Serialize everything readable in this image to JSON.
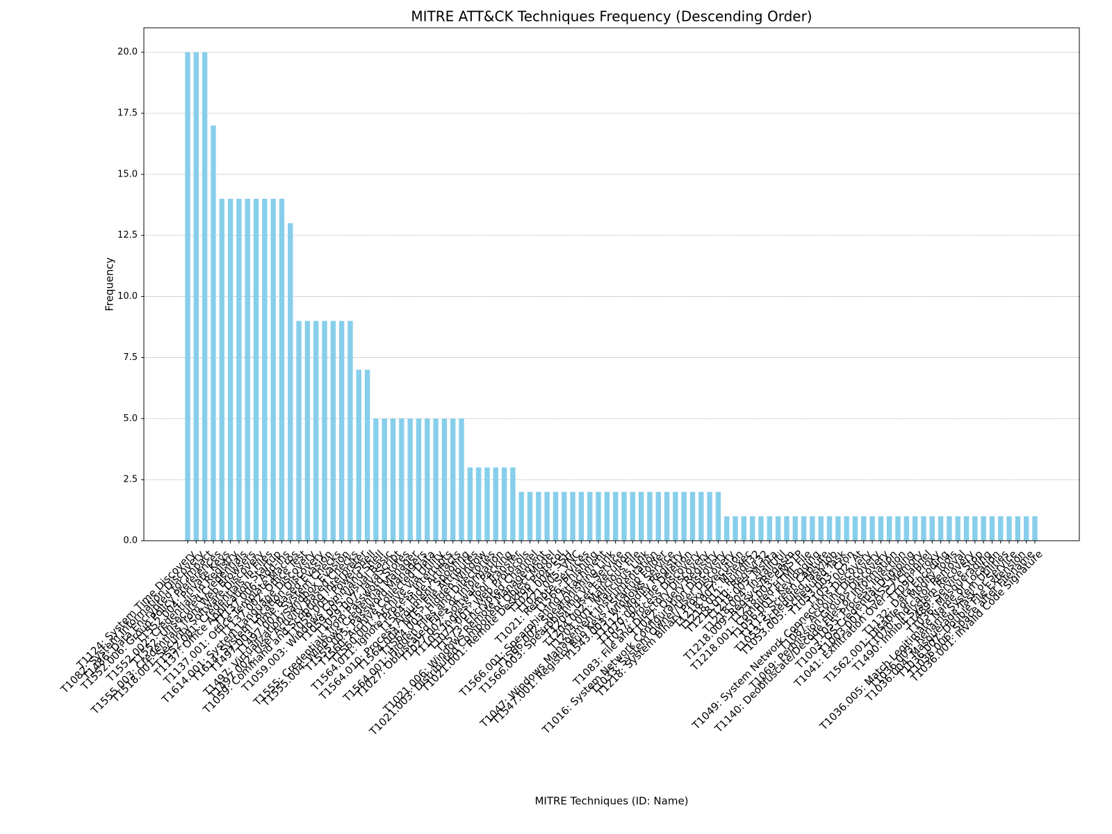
{
  "chart_data": {
    "type": "bar",
    "title": "MITRE ATT&CK Techniques Frequency (Descending Order)",
    "x_label": "MITRE Techniques (ID: Name)",
    "y_label": "Frequency",
    "color": "#87ceeb",
    "grid": true,
    "ylim": [
      0,
      21
    ],
    "yticks": [
      {
        "value": 0,
        "label": "0.0"
      },
      {
        "value": 2.5,
        "label": "2.5"
      },
      {
        "value": 5,
        "label": "5.0"
      },
      {
        "value": 7.5,
        "label": "7.5"
      },
      {
        "value": 10,
        "label": "10.0"
      },
      {
        "value": 12.5,
        "label": "12.5"
      },
      {
        "value": 15,
        "label": "15.0"
      },
      {
        "value": 17.5,
        "label": "17.5"
      },
      {
        "value": 20,
        "label": "20.0"
      }
    ],
    "categories": [
      "T1124: System Time Discovery",
      "T1082: System Information Discovery",
      "T1486: Data Encrypted for Impact",
      "T1552.006: Group Policy Preferences",
      "T1552.004: Private Keys",
      "T1552.002: Credentials in Registry",
      "T1552: Unsecured Credentials",
      "T1555.003: Credentials from Web Browsers",
      "T1518.001: Security Software Discovery",
      "T1552.001: Credentials In Files",
      "T1137: Office Application Startup",
      "T1137.006: Add-ins",
      "T1137.001: Office Template Macros",
      "T1137.002: Office Test",
      "T1614.001: System Language Discovery",
      "T1614: System Location Discovery",
      "T1497.003: Time Based Evasion",
      "T1497.001: System Checks",
      "T1497: Virtualization/Sandbox Evasion",
      "T1497.002: User Activity Based Checks",
      "T1059: Command and Scripting Interpreter",
      "T1059.001: PowerShell",
      "T1059.003: Windows Command Shell",
      "T1059.005: Visual Basic",
      "T1059.007: JavaScript",
      "T1555: Credentials from Password Stores",
      "T1555.004: Windows Credential Manager",
      "T1555.005: Password Managers",
      "T1560: Archive Collected Data",
      "T1560.001: Archive via Utility",
      "T1564.011: Ignore Process Interrupts",
      "T1564: Hide Artifacts",
      "T1564.010: Process Argument Spoofing",
      "T1564.004: NTFS File Attributes",
      "T1564.003: Hidden Window",
      "T1564.001: Hidden Files and Directories",
      "T1027: Obfuscated Files or Information",
      "T1027.002: Software Packing",
      "T1105: Ingress Tool Transfer",
      "T1071.001: Web Protocols",
      "T1573: Encrypted Channel",
      "T1021.006: Windows Remote Management",
      "T1021.003: Distributed Component Object Model",
      "T1021.001: Remote Desktop Protocol",
      "T1021.004: SSH",
      "T1021.005: VNC",
      "T1021: Remote Services",
      "T1566: Phishing",
      "T1566.001: Spearphishing Attachment",
      "T1566.002: Spearphishing Link",
      "T1566.003: Spearphishing via Service",
      "T1204: User Execution",
      "T1204.002: Malicious File",
      "T1204.001: Malicious Link",
      "T1047: Windows Management Instrumentation",
      "T1547.001: Registry Run Keys / Startup Folder",
      "T1543.003: Windows Service",
      "T1112: Modify Registry",
      "T1070.004: File Deletion",
      "T1057: Process Discovery",
      "T1083: File and Directory Discovery",
      "T1012: Query Registry",
      "T1016: System Network Configuration Discovery",
      "T1033: System Owner/User Discovery",
      "T1218: System Binary Proxy Execution",
      "T1218.007: Msiexec",
      "T1218.011: Rundll32",
      "T1218.010: Regsvr32",
      "T1218.005: Mshta",
      "T1218.004: InstallUtil",
      "T1218.009: Regsvcs/Regasm",
      "T1218.003: CMSTP",
      "T1218.001: Compiled HTML File",
      "T1056.001: Keylogging",
      "T1113: Screen Capture",
      "T1053: Scheduled Task/Job",
      "T1053.005: Scheduled Task",
      "T1053.003: Cron",
      "T1053.002: At",
      "T1049: System Network Connections Discovery",
      "T1087: Account Discovery",
      "T1069: Permission Groups Discovery",
      "T1140: Deobfuscate/Decode Files or Information",
      "T1055: Process Injection",
      "T1003: OS Credential Dumping",
      "T1003.001: LSASS Memory",
      "T1041: Exfiltration Over C2 Channel",
      "T1090: Proxy",
      "T1132: Data Encoding",
      "T1562.001: Disable or Modify Tools",
      "T1070: Indicator Removal",
      "T1490: Inhibit System Recovery",
      "T1489: Service Stop",
      "T1036: Masquerading",
      "T1036.005: Match Legitimate Name or Location",
      "T1036.003: Rename System Utilities",
      "T1036.004: Masquerade Task or Service",
      "T1036.007: Double File Extension",
      "T1036.006: Space after Filename",
      "T1036.001: Invalid Code Signature"
    ],
    "values": [
      20,
      20,
      20,
      17,
      14,
      14,
      14,
      14,
      14,
      14,
      14,
      14,
      13,
      9,
      9,
      9,
      9,
      9,
      9,
      9,
      7,
      7,
      5,
      5,
      5,
      5,
      5,
      5,
      5,
      5,
      5,
      5,
      5,
      3,
      3,
      3,
      3,
      3,
      3,
      2,
      2,
      2,
      2,
      2,
      2,
      2,
      2,
      2,
      2,
      2,
      2,
      2,
      2,
      2,
      2,
      2,
      2,
      2,
      2,
      2,
      2,
      2,
      2,
      1,
      1,
      1,
      1,
      1,
      1,
      1,
      1,
      1,
      1,
      1,
      1,
      1,
      1,
      1,
      1,
      1,
      1,
      1,
      1,
      1,
      1,
      1,
      1,
      1,
      1,
      1,
      1,
      1,
      1,
      1,
      1,
      1,
      1,
      1,
      1,
      1
    ]
  }
}
